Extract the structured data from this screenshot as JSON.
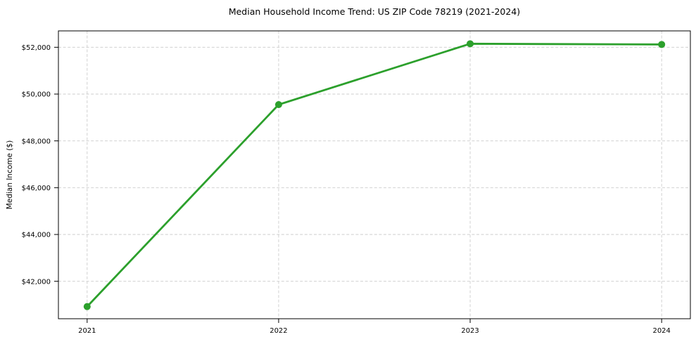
{
  "chart_data": {
    "type": "line",
    "title": "Median Household Income Trend: US ZIP Code 78219 (2021-2024)",
    "xlabel": "",
    "ylabel": "Median Income ($)",
    "x": [
      2021,
      2022,
      2023,
      2024
    ],
    "x_tick_labels": [
      "2021",
      "2022",
      "2023",
      "2024"
    ],
    "series": [
      {
        "color": "#2ca02c",
        "values": [
          40920,
          49550,
          52150,
          52120
        ]
      }
    ],
    "xlim": [
      2020.85,
      2024.15
    ],
    "ylim": [
      40400,
      52700
    ],
    "yticks": [
      42000,
      44000,
      46000,
      48000,
      50000,
      52000
    ],
    "ytick_prefix": "$",
    "grid": {
      "show": true,
      "style": "dashed",
      "color": "#cccccc"
    },
    "legend": {
      "show": false
    },
    "marker": {
      "shape": "circle",
      "size": 10
    },
    "line_width": 2.8,
    "background_color": "#ffffff",
    "axis_color": "#000000"
  }
}
